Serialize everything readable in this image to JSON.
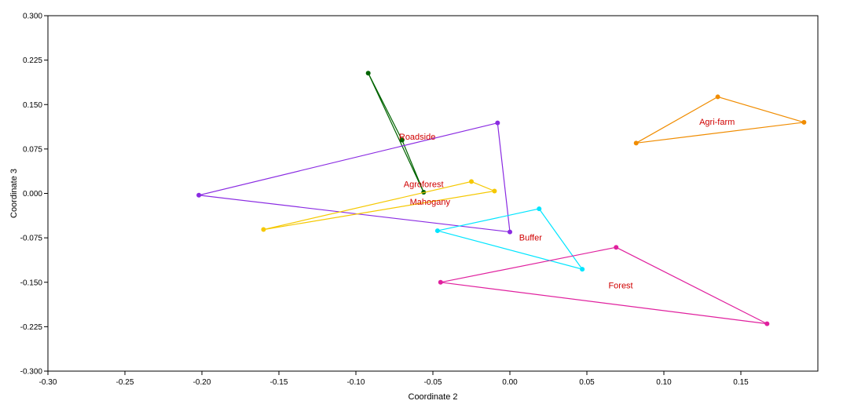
{
  "chart_data": {
    "type": "scatter",
    "xlabel": "Coordinate 2",
    "ylabel": "Coordinate 3",
    "xlim": [
      -0.3,
      0.2
    ],
    "ylim": [
      -0.3,
      0.3
    ],
    "x_ticks": [
      "-0.30",
      "-0.25",
      "-0.20",
      "-0.15",
      "-0.10",
      "-0.05",
      "0.00",
      "0.05",
      "0.10",
      "0.15"
    ],
    "x_tick_values": [
      -0.3,
      -0.25,
      -0.2,
      -0.15,
      -0.1,
      -0.05,
      0.0,
      0.05,
      0.1,
      0.15
    ],
    "y_ticks": [
      "0.300",
      "0.225",
      "0.150",
      "0.075",
      "0.000",
      "-0.075",
      "-0.150",
      "-0.225",
      "-0.300"
    ],
    "y_tick_values": [
      0.3,
      0.225,
      0.15,
      0.075,
      0.0,
      -0.075,
      -0.15,
      -0.225,
      -0.3
    ],
    "grid": false,
    "label_color": "#d00000",
    "series": [
      {
        "name": "Roadside",
        "color": "#006400",
        "points": [
          [
            -0.092,
            0.203
          ],
          [
            -0.056,
            0.002
          ],
          [
            -0.07,
            0.09
          ]
        ],
        "label_pos": [
          -0.072,
          0.096
        ]
      },
      {
        "name": "Agroforest",
        "color": "#8a2be2",
        "points": [
          [
            -0.008,
            0.119
          ],
          [
            0.0,
            -0.065
          ],
          [
            -0.202,
            -0.003
          ]
        ],
        "label_pos": [
          -0.069,
          0.016
        ]
      },
      {
        "name": "Mahogany",
        "color": "#f5c800",
        "points": [
          [
            -0.025,
            0.02
          ],
          [
            -0.01,
            0.004
          ],
          [
            -0.16,
            -0.061
          ]
        ],
        "label_pos": [
          -0.065,
          -0.014
        ]
      },
      {
        "name": "Buffer",
        "color": "#00e5ff",
        "points": [
          [
            0.019,
            -0.026
          ],
          [
            0.047,
            -0.128
          ],
          [
            -0.047,
            -0.063
          ]
        ],
        "label_pos": [
          0.006,
          -0.074
        ]
      },
      {
        "name": "Forest",
        "color": "#e0209e",
        "points": [
          [
            0.069,
            -0.091
          ],
          [
            0.167,
            -0.22
          ],
          [
            -0.045,
            -0.15
          ]
        ],
        "label_pos": [
          0.064,
          -0.155
        ]
      },
      {
        "name": "Agri-farm",
        "color": "#f08c00",
        "points": [
          [
            0.082,
            0.085
          ],
          [
            0.135,
            0.163
          ],
          [
            0.191,
            0.12
          ]
        ],
        "label_pos": [
          0.123,
          0.121
        ]
      }
    ]
  }
}
